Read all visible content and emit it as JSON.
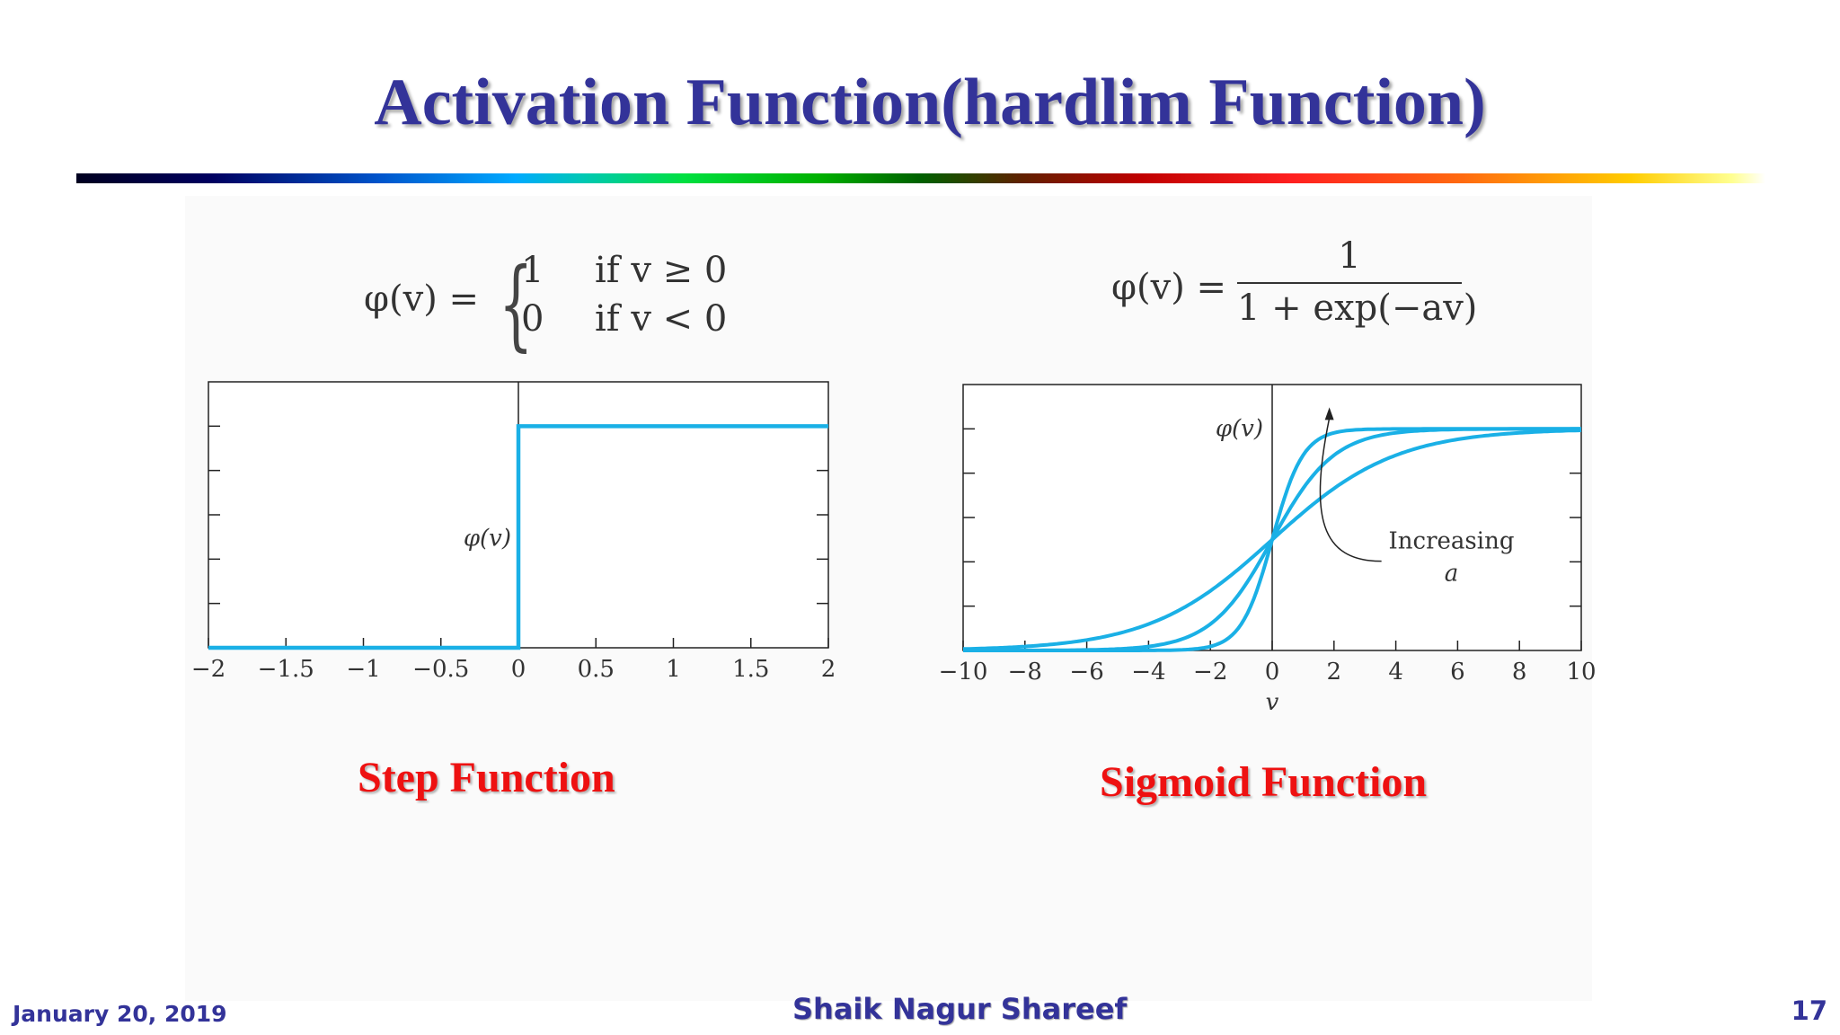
{
  "title": "Activation Function(hardlim Function)",
  "colors": {
    "title": "#333399",
    "caption": "#ee1111",
    "curve": "#1ab0e6",
    "footer": "#333399"
  },
  "step": {
    "lhs": "φ(v) =",
    "case1_value": "1",
    "case1_cond": "if v ≥ 0",
    "case2_value": "0",
    "case2_cond": "if v < 0",
    "caption": "Step Function"
  },
  "sigmoid": {
    "lhs": "φ(v) =",
    "numerator": "1",
    "denominator": "1 + exp(−av)",
    "annotation_line1": "Increasing",
    "annotation_line2": "a",
    "caption": "Sigmoid Function"
  },
  "chart_data": [
    {
      "type": "line",
      "x_ticks": [
        "−2",
        "−1.5",
        "−1",
        "−0.5",
        "0",
        "0.5",
        "1",
        "1.5",
        "2"
      ],
      "ylabel": "φ(v)",
      "xlim": [
        -2,
        2
      ],
      "ylim": [
        0,
        1.2
      ],
      "grid": false,
      "series": [
        {
          "x": [
            -2,
            0,
            0,
            2
          ],
          "y": [
            0,
            0,
            1,
            1
          ]
        }
      ]
    },
    {
      "type": "line",
      "x_ticks": [
        "−10",
        "−8",
        "−6",
        "−4",
        "−2",
        "0",
        "2",
        "4",
        "6",
        "8",
        "10"
      ],
      "xlabel": "v",
      "ylabel": "φ(v)",
      "xlim": [
        -10,
        10
      ],
      "ylim": [
        0,
        1.2
      ],
      "grid": false,
      "series": [
        {
          "a": 0.5
        },
        {
          "a": 1
        },
        {
          "a": 2
        }
      ]
    }
  ],
  "footer": {
    "date": "January 20, 2019",
    "author": "Shaik Nagur Shareef",
    "page": "17"
  }
}
